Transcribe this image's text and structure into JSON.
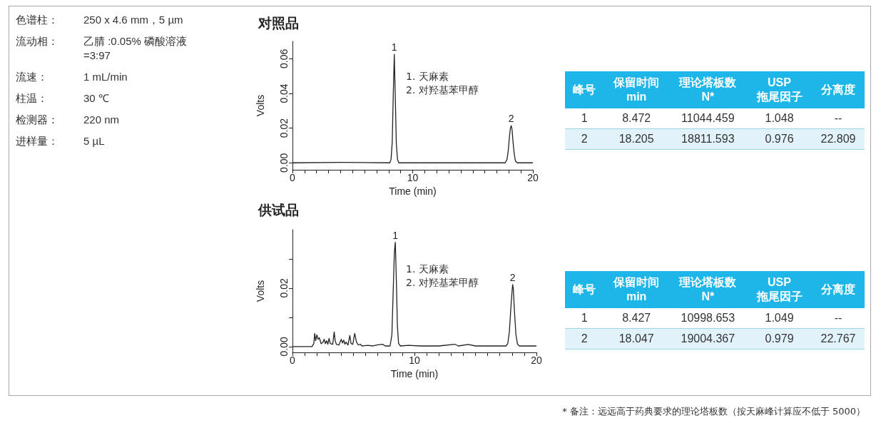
{
  "chart_data": [
    {
      "type": "other",
      "annotations": [
        "色谱柱： 250 x 4.6 mm，5 µm",
        "流动相： 乙腈 :0.05% 磷酸溶液 =3:97",
        "流速： 1 mL/min",
        "柱温： 30 ℃",
        "检测器： 220 nm",
        "进样量： 5 µL"
      ]
    },
    {
      "type": "line",
      "title": "对照品",
      "xlabel": "Time (min)",
      "ylabel": "Volts",
      "xlim": [
        0,
        20
      ],
      "ylim": [
        -0.004,
        0.07
      ],
      "xticks": [
        0,
        {
          "value": 1,
          "label": null
        },
        {
          "value": 2,
          "label": null
        },
        {
          "value": 3,
          "label": null
        },
        {
          "value": 4,
          "label": null
        },
        {
          "value": 5,
          "label": null
        },
        {
          "value": 6,
          "label": null
        },
        {
          "value": 7,
          "label": null
        },
        {
          "value": 8,
          "label": null
        },
        {
          "value": 9,
          "label": null
        },
        10,
        {
          "value": 11,
          "label": null
        },
        {
          "value": 12,
          "label": null
        },
        {
          "value": 13,
          "label": null
        },
        {
          "value": 14,
          "label": null
        },
        {
          "value": 15,
          "label": null
        },
        {
          "value": 16,
          "label": null
        },
        {
          "value": 17,
          "label": null
        },
        {
          "value": 18,
          "label": null
        },
        {
          "value": 19,
          "label": null
        },
        20
      ],
      "yticks": [
        {
          "value": 0,
          "label": "0.00"
        },
        {
          "value": 0.02,
          "label": "0.02"
        },
        {
          "value": 0.04,
          "label": "0.04"
        },
        {
          "value": 0.06,
          "label": "0.06"
        }
      ],
      "series": [
        {
          "color": "#222222",
          "x": [
            0,
            4,
            8.1,
            8.2,
            8.3,
            8.38,
            8.47,
            8.56,
            8.64,
            8.74,
            8.85,
            12,
            17.7,
            17.85,
            17.95,
            18.05,
            18.13,
            18.2,
            18.27,
            18.35,
            18.45,
            18.55,
            18.7,
            20
          ],
          "values": [
            0,
            0.0003,
            0,
            0.002,
            0.012,
            0.038,
            0.0625,
            0.036,
            0.011,
            0.002,
            0,
            0,
            0,
            0.002,
            0.007,
            0.015,
            0.02,
            0.0214,
            0.019,
            0.012,
            0.005,
            0.001,
            0,
            0
          ]
        }
      ],
      "annotations": [
        {
          "text": "1",
          "x": 8.47,
          "y": 0.0625
        },
        {
          "text": "2",
          "x": 18.2,
          "y": 0.0214
        },
        "1. 天麻素",
        "2. 对羟基苯甲醇"
      ]
    },
    {
      "type": "other",
      "categories": [
        "峰号",
        "保留时间\nmin",
        "理论塔板数\nN*",
        "USP\n拖尾因子",
        "分离度"
      ],
      "annotations": [
        "1",
        "8.472",
        "11044.459",
        "1.048",
        "--",
        "2",
        "18.205",
        "18811.593",
        "0.976",
        "22.809"
      ]
    },
    {
      "type": "line",
      "title": "供试品",
      "xlabel": "Time (min)",
      "ylabel": "Volts",
      "xlim": [
        0,
        20
      ],
      "ylim": [
        -0.002,
        0.04
      ],
      "xticks": [
        0,
        {
          "value": 1,
          "label": null
        },
        {
          "value": 2,
          "label": null
        },
        {
          "value": 3,
          "label": null
        },
        {
          "value": 4,
          "label": null
        },
        {
          "value": 5,
          "label": null
        },
        {
          "value": 6,
          "label": null
        },
        {
          "value": 7,
          "label": null
        },
        {
          "value": 8,
          "label": null
        },
        {
          "value": 9,
          "label": null
        },
        10,
        {
          "value": 11,
          "label": null
        },
        {
          "value": 12,
          "label": null
        },
        {
          "value": 13,
          "label": null
        },
        {
          "value": 14,
          "label": null
        },
        {
          "value": 15,
          "label": null
        },
        {
          "value": 16,
          "label": null
        },
        {
          "value": 17,
          "label": null
        },
        {
          "value": 18,
          "label": null
        },
        {
          "value": 19,
          "label": null
        },
        20
      ],
      "yticks": [
        {
          "value": 0,
          "label": "0.00"
        },
        {
          "value": 0.01,
          "label": null
        },
        {
          "value": 0.02,
          "label": "0.02"
        },
        {
          "value": 0.03,
          "label": null
        }
      ],
      "series": [
        {
          "color": "#222222",
          "x": [
            0,
            1.6,
            1.75,
            1.82,
            1.9,
            2.0,
            2.1,
            2.2,
            2.35,
            2.5,
            2.6,
            2.7,
            2.8,
            2.9,
            3.0,
            3.1,
            3.3,
            3.42,
            3.5,
            3.6,
            3.8,
            4.0,
            4.1,
            4.2,
            4.3,
            4.4,
            4.55,
            4.7,
            4.8,
            4.95,
            5.1,
            5.25,
            5.4,
            5.55,
            5.7,
            6.2,
            6.6,
            7.0,
            7.4,
            7.6,
            8.0,
            8.15,
            8.25,
            8.35,
            8.43,
            8.52,
            8.6,
            8.7,
            8.85,
            9.5,
            10.5,
            12,
            13.3,
            13.6,
            14.4,
            15,
            17.5,
            17.65,
            17.78,
            17.9,
            18.0,
            18.05,
            18.1,
            18.2,
            18.32,
            18.45,
            18.6,
            20
          ],
          "values": [
            0,
            0,
            0.001,
            0.0045,
            0.002,
            0.004,
            0.0025,
            0.003,
            0.001,
            0.0015,
            0.0025,
            0.001,
            0.002,
            0.0008,
            0.0028,
            0.001,
            0.0008,
            0.005,
            0.002,
            0.0008,
            0.0005,
            0.0025,
            0.0012,
            0.0022,
            0.0008,
            0.0015,
            0.0005,
            0.0038,
            0.001,
            0.0008,
            0.0045,
            0.0015,
            0.0005,
            0.0008,
            0.0002,
            0.0004,
            0.0002,
            0.0006,
            0.0008,
            0.0002,
            0.0002,
            0.004,
            0.018,
            0.032,
            0.0357,
            0.022,
            0.007,
            0.001,
            0.0002,
            0.0004,
            0.0002,
            0.0002,
            0.0008,
            0.0002,
            0.0007,
            0.0002,
            0.0002,
            0.001,
            0.005,
            0.013,
            0.019,
            0.0212,
            0.02,
            0.012,
            0.004,
            0.0008,
            0.0002,
            0.0002
          ]
        }
      ],
      "annotations": [
        {
          "text": "1",
          "x": 8.43,
          "y": 0.0357
        },
        {
          "text": "2",
          "x": 18.05,
          "y": 0.0212
        },
        "1. 天麻素",
        "2. 对羟基苯甲醇"
      ]
    },
    {
      "type": "other",
      "categories": [
        "峰号",
        "保留时间\nmin",
        "理论塔板数\nN*",
        "USP\n拖尾因子",
        "分离度"
      ],
      "annotations": [
        "1",
        "8.427",
        "10998.653",
        "1.049",
        "--",
        "2",
        "18.047",
        "19004.367",
        "0.979",
        "22.767"
      ]
    },
    {
      "type": "other",
      "annotations": [
        "* 备注：远远高于药典要求的理论塔板数（按天麻峰计算应不低于 5000）"
      ]
    }
  ]
}
